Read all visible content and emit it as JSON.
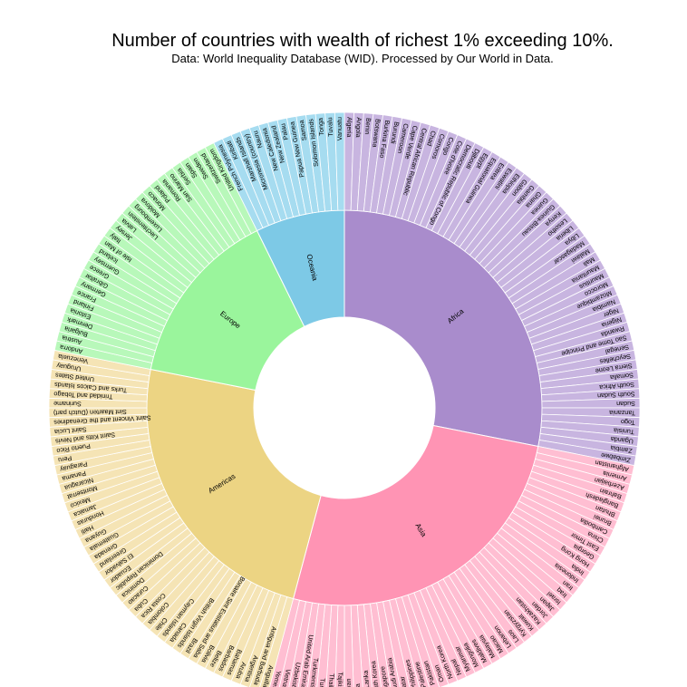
{
  "chart_data": {
    "type": "sunburst",
    "title": "Number of countries with wealth of richest 1% exceeding 10%.",
    "subtitle": "Data: World Inequality Database (WID). Processed by Our World in Data.",
    "groups": [
      {
        "name": "Africa",
        "color": "#a98ccc",
        "light": "#c8b5e0",
        "countries": [
          "Algeria",
          "Angola",
          "Benin",
          "Botswana",
          "Burkina Faso",
          "Burundi",
          "Cameroon",
          "Cape Verde",
          "Central African Republic",
          "Chad",
          "Comoros",
          "Congo",
          "Cote d'Ivoire",
          "Democratic Republic of Congo",
          "Djibouti",
          "Egypt",
          "Equatorial Guinea",
          "Eritrea",
          "Eswatini",
          "Ethiopia",
          "Gabon",
          "Gambia",
          "Ghana",
          "Guinea",
          "Guinea-Bissau",
          "Kenya",
          "Lesotho",
          "Liberia",
          "Libya",
          "Madagascar",
          "Malawi",
          "Mali",
          "Mauritania",
          "Mauritius",
          "Morocco",
          "Mozambique",
          "Namibia",
          "Niger",
          "Nigeria",
          "Rwanda",
          "Sao Tome and Principe",
          "Senegal",
          "Seychelles",
          "Sierra Leone",
          "Somalia",
          "South Africa",
          "South Sudan",
          "Sudan",
          "Tanzania",
          "Togo",
          "Tunisia",
          "Uganda",
          "Zambia",
          "Zimbabwe"
        ]
      },
      {
        "name": "Asia",
        "color": "#ff94b4",
        "light": "#ffbed2",
        "countries": [
          "Afghanistan",
          "Armenia",
          "Azerbaijan",
          "Bahrain",
          "Bangladesh",
          "Bhutan",
          "Brunei",
          "Cambodia",
          "China",
          "East Timor",
          "Georgia",
          "Hong Kong",
          "India",
          "Indonesia",
          "Iran",
          "Iraq",
          "Israel",
          "Japan",
          "Jordan",
          "Kazakhstan",
          "Kuwait",
          "Kyrgyzstan",
          "Laos",
          "Lebanon",
          "Macao",
          "Malaysia",
          "Maldives",
          "Mongolia",
          "Myanmar",
          "Nepal",
          "North Korea",
          "Oman",
          "Pakistan",
          "Palestine",
          "Philippines",
          "Qatar",
          "Saudi Arabia",
          "Singapore",
          "South Korea",
          "Sri Lanka",
          "Syria",
          "Taiwan",
          "Tajikistan",
          "Thailand",
          "Turkey",
          "Turkmenistan",
          "United Arab Emirates",
          "Uzbekistan",
          "Vietnam",
          "Yemen"
        ]
      },
      {
        "name": "Americas",
        "color": "#ecd483",
        "light": "#f5e4b5",
        "countries": [
          "Anguilla",
          "Antigua and Barbuda",
          "Argentina",
          "Aruba",
          "Bahamas",
          "Barbados",
          "Belize",
          "Bolivia",
          "Bonaire Sint Eustatius and Saba",
          "Brazil",
          "British Virgin Islands",
          "Canada",
          "Cayman Islands",
          "Chile",
          "Colombia",
          "Costa Rica",
          "Cuba",
          "Curacao",
          "Dominica",
          "Dominican Republic",
          "Ecuador",
          "El Salvador",
          "Greenland",
          "Grenada",
          "Guatemala",
          "Guyana",
          "Haiti",
          "Honduras",
          "Jamaica",
          "Mexico",
          "Montserrat",
          "Nicaragua",
          "Panama",
          "Paraguay",
          "Peru",
          "Puerto Rico",
          "Saint Kitts and Nevis",
          "Saint Lucia",
          "Saint Vincent and the Grenadines",
          "Sint Maarten (Dutch part)",
          "Suriname",
          "Trinidad and Tobago",
          "Turks and Caicos Islands",
          "United States",
          "Uruguay",
          "Venezuela"
        ]
      },
      {
        "name": "Europe",
        "color": "#9af59c",
        "light": "#b8f8ba",
        "countries": [
          "Andorra",
          "Austria",
          "Bulgaria",
          "Denmark",
          "Estonia",
          "Finland",
          "France",
          "Germany",
          "Gibraltar",
          "Greece",
          "Guernsey",
          "Iceland",
          "Isle of Man",
          "Italy",
          "Jersey",
          "Latvia",
          "Liechtenstein",
          "Luxembourg",
          "Moldova",
          "Monaco",
          "Poland",
          "Romania",
          "San Marino",
          "Serbia",
          "Spain",
          "Sweden",
          "Switzerland",
          "United Kingdom"
        ]
      },
      {
        "name": "Oceania",
        "color": "#7dc9e6",
        "light": "#a6dcf0",
        "countries": [
          "French Polynesia",
          "Kiribati",
          "Marshall Islands",
          "Micronesia (country)",
          "Nauru",
          "New Caledonia",
          "New Zealand",
          "Palau",
          "Papua New Guinea",
          "Samoa",
          "Solomon Islands",
          "Tonga",
          "Tuvalu",
          "Vanuatu"
        ]
      }
    ]
  }
}
